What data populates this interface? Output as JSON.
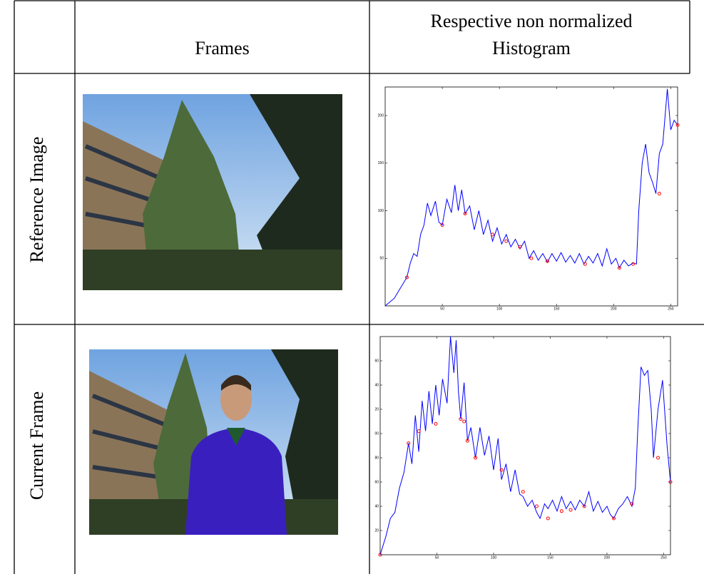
{
  "table": {
    "header": {
      "frames": "Frames",
      "histogram": "Respective non normalized Histogram"
    },
    "rows": [
      {
        "label": "Reference Image",
        "chart": {
          "type": "line",
          "xlim": [
            0,
            256
          ],
          "ylim": [
            0,
            230
          ],
          "xticks": [
            50,
            100,
            150,
            200,
            250
          ],
          "yticks": [
            50,
            100,
            150,
            200
          ],
          "series": [
            {
              "color": "#0000ff",
              "style": "line",
              "x": [
                0,
                8,
                14,
                19,
                22,
                25,
                28,
                31,
                34,
                37,
                40,
                44,
                47,
                50,
                54,
                58,
                61,
                64,
                67,
                70,
                74,
                78,
                82,
                86,
                90,
                94,
                98,
                102,
                106,
                110,
                114,
                118,
                122,
                126,
                130,
                134,
                138,
                142,
                146,
                150,
                154,
                158,
                162,
                166,
                170,
                174,
                178,
                182,
                186,
                190,
                194,
                198,
                202,
                205,
                209,
                213,
                217,
                220,
                222,
                225,
                228,
                231,
                234,
                237,
                240,
                243,
                247,
                250,
                253,
                256
              ],
              "values": [
                0,
                8,
                20,
                30,
                45,
                55,
                52,
                75,
                85,
                108,
                95,
                110,
                88,
                85,
                112,
                98,
                127,
                100,
                122,
                97,
                105,
                80,
                100,
                75,
                90,
                68,
                82,
                65,
                75,
                62,
                70,
                60,
                68,
                50,
                58,
                48,
                55,
                46,
                55,
                47,
                56,
                46,
                53,
                45,
                55,
                44,
                52,
                45,
                55,
                42,
                60,
                44,
                50,
                40,
                48,
                42,
                45,
                44,
                100,
                150,
                170,
                140,
                130,
                118,
                160,
                170,
                228,
                185,
                195,
                190
              ]
            },
            {
              "color": "#ff0000",
              "style": "marker",
              "x": [
                19,
                50,
                70,
                94,
                106,
                118,
                128,
                142,
                175,
                205,
                217,
                240,
                256
              ],
              "values": [
                30,
                85,
                97,
                75,
                68,
                62,
                50,
                47,
                44,
                40,
                44,
                118,
                190
              ]
            }
          ]
        }
      },
      {
        "label": "Current Frame",
        "chart": {
          "type": "line",
          "xlim": [
            0,
            256
          ],
          "ylim": [
            0,
            180
          ],
          "xticks": [
            50,
            100,
            150,
            200,
            250
          ],
          "yticks": [
            20,
            40,
            60,
            80,
            {
              "value": 100,
              "label": "00"
            },
            {
              "value": 120,
              "label": "20"
            },
            {
              "value": 140,
              "label": "40"
            },
            {
              "value": 160,
              "label": "60"
            }
          ],
          "series": [
            {
              "color": "#0000ff",
              "style": "line",
              "x": [
                0,
                5,
                9,
                13,
                17,
                21,
                25,
                28,
                31,
                34,
                37,
                40,
                43,
                46,
                49,
                52,
                55,
                59,
                62,
                65,
                67,
                69,
                71,
                74,
                77,
                80,
                84,
                88,
                92,
                96,
                100,
                104,
                107,
                111,
                115,
                119,
                123,
                126,
                130,
                134,
                138,
                141,
                145,
                148,
                152,
                156,
                160,
                164,
                168,
                172,
                176,
                180,
                184,
                188,
                192,
                196,
                200,
                203,
                206,
                210,
                214,
                218,
                222,
                225,
                227,
                230,
                233,
                236,
                239,
                241,
                245,
                249,
                253,
                256
              ],
              "values": [
                0,
                15,
                30,
                35,
                55,
                68,
                92,
                75,
                115,
                85,
                127,
                102,
                135,
                108,
                140,
                115,
                145,
                125,
                180,
                150,
                177,
                135,
                112,
                142,
                94,
                105,
                80,
                105,
                82,
                98,
                70,
                96,
                62,
                75,
                52,
                70,
                50,
                48,
                40,
                45,
                35,
                30,
                42,
                38,
                45,
                36,
                48,
                38,
                44,
                37,
                45,
                40,
                52,
                36,
                44,
                35,
                40,
                33,
                30,
                38,
                42,
                48,
                40,
                55,
                100,
                155,
                148,
                152,
                120,
                80,
                120,
                144,
                90,
                60
              ]
            },
            {
              "color": "#ff0000",
              "style": "marker",
              "x": [
                0,
                25,
                34,
                49,
                71,
                74,
                77,
                84,
                107,
                126,
                138,
                148,
                160,
                168,
                180,
                206,
                222,
                245,
                256
              ],
              "values": [
                0,
                92,
                102,
                108,
                112,
                110,
                94,
                80,
                70,
                52,
                40,
                30,
                36,
                37,
                40,
                30,
                42,
                80,
                60
              ]
            }
          ]
        }
      }
    ]
  }
}
